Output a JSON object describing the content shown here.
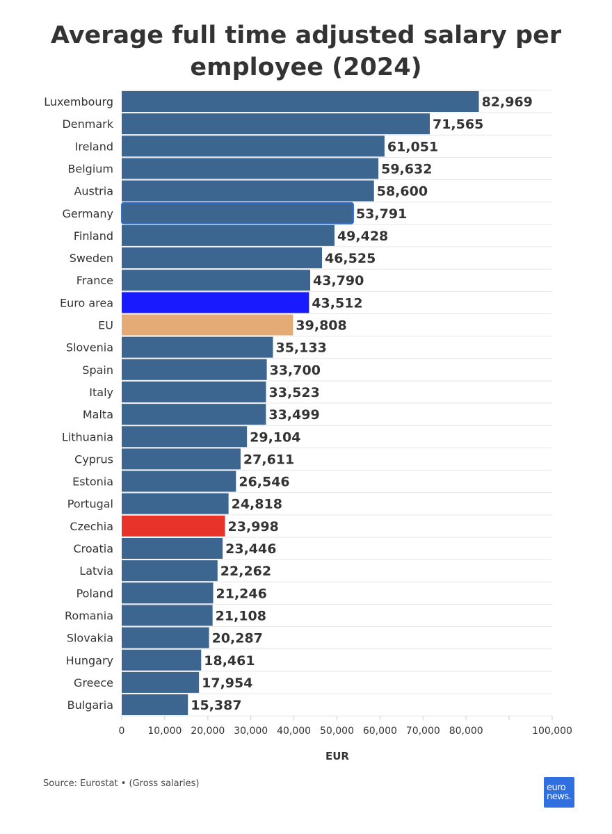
{
  "chart_data": {
    "type": "bar",
    "orientation": "horizontal",
    "title": "Average full time adjusted salary per employee (2024)",
    "xlabel": "EUR",
    "ylabel": "",
    "xlim": [
      0,
      100000
    ],
    "x_ticks": [
      0,
      10000,
      20000,
      30000,
      40000,
      50000,
      60000,
      70000,
      80000,
      100000
    ],
    "x_tick_labels": [
      "0",
      "10,000",
      "20,000",
      "30,000",
      "40,000",
      "50,000",
      "60,000",
      "70,000",
      "80,000",
      "100,000"
    ],
    "grid": true,
    "categories": [
      "Luxembourg",
      "Denmark",
      "Ireland",
      "Belgium",
      "Austria",
      "Germany",
      "Finland",
      "Sweden",
      "France",
      "Euro area",
      "EU",
      "Slovenia",
      "Spain",
      "Italy",
      "Malta",
      "Lithuania",
      "Cyprus",
      "Estonia",
      "Portugal",
      "Czechia",
      "Croatia",
      "Latvia",
      "Poland",
      "Romania",
      "Slovakia",
      "Hungary",
      "Greece",
      "Bulgaria"
    ],
    "values": [
      82969,
      71565,
      61051,
      59632,
      58600,
      53791,
      49428,
      46525,
      43790,
      43512,
      39808,
      35133,
      33700,
      33523,
      33499,
      29104,
      27611,
      26546,
      24818,
      23998,
      23446,
      22262,
      21246,
      21108,
      20287,
      18461,
      17954,
      15387
    ],
    "value_labels": [
      "82,969",
      "71,565",
      "61,051",
      "59,632",
      "58,600",
      "53,791",
      "49,428",
      "46,525",
      "43,790",
      "43,512",
      "39,808",
      "35,133",
      "33,700",
      "33,523",
      "33,499",
      "29,104",
      "27,611",
      "26,546",
      "24,818",
      "23,998",
      "23,446",
      "22,262",
      "21,246",
      "21,108",
      "20,287",
      "18,461",
      "17,954",
      "15,387"
    ],
    "colors": {
      "default": "#3c6590",
      "highlights": {
        "Euro area": "#1a1aff",
        "EU": "#e4ab76",
        "Czechia": "#e8332a"
      },
      "outlined": {
        "Germany": "#2f6fe0"
      }
    }
  },
  "footer": {
    "source": "Source: Eurostat • (Gross salaries)"
  },
  "logo": {
    "line1": "euro",
    "line2": "news."
  }
}
